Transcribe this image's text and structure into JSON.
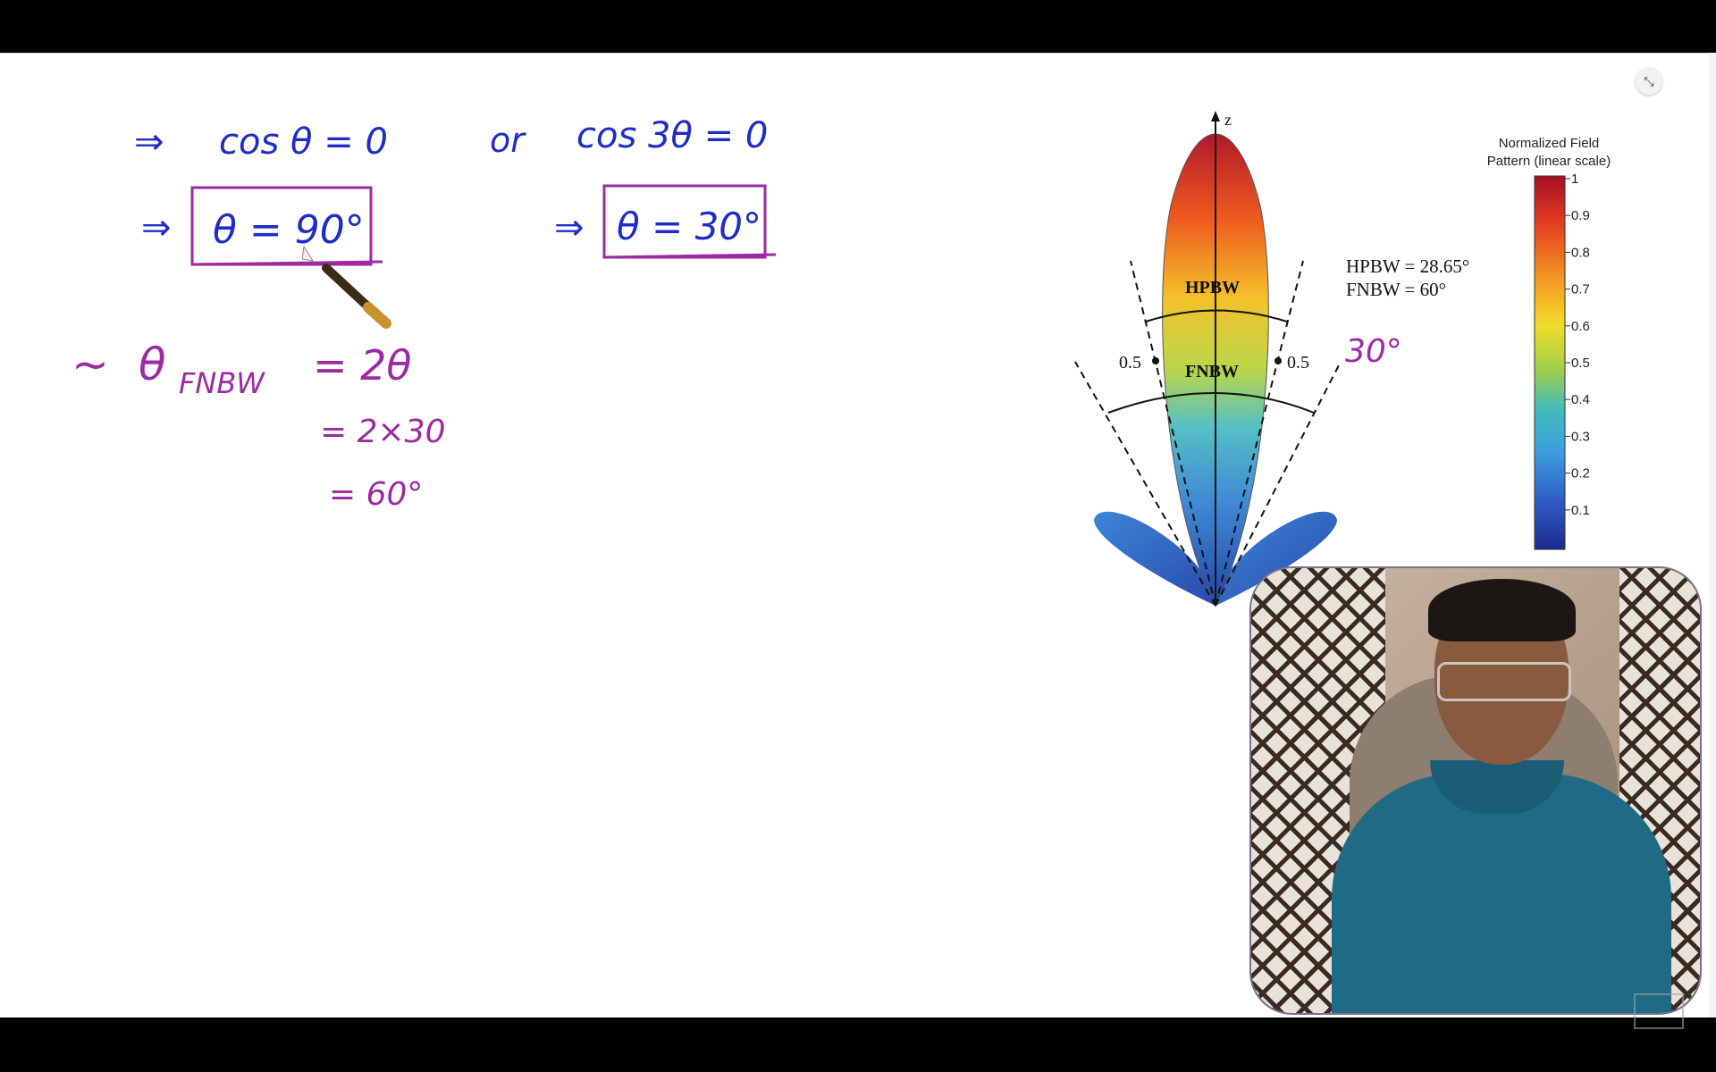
{
  "whiteboard": {
    "line1": {
      "arrow": "⇒",
      "left": "cos θ = 0",
      "connector": "or",
      "right": "cos 3θ = 0"
    },
    "boxed_left": {
      "arrow": "⇒",
      "text": "θ = 90°"
    },
    "boxed_right": {
      "arrow": "⇒",
      "text": "θ = 30°"
    },
    "fnbw_eq": {
      "prefix": "~",
      "theta": "θ",
      "subscript": "FNBW",
      "rhs": "= 2θ"
    },
    "step2": "= 2×30",
    "step3": "= 60°",
    "annotation_angle": "30°"
  },
  "figure": {
    "axis_label": "z",
    "hpbw_label": "HPBW",
    "fnbw_label": "FNBW",
    "half_power_left": "0.5",
    "half_power_right": "0.5",
    "legend_line1": "HPBW = 28.65°",
    "legend_line2": "FNBW = 60°"
  },
  "colorbar": {
    "title_line1": "Normalized Field",
    "title_line2": "Pattern (linear scale)",
    "ticks": [
      "1",
      "0.9",
      "0.8",
      "0.7",
      "0.6",
      "0.5",
      "0.4",
      "0.3",
      "0.2",
      "0.1"
    ],
    "colors": {
      "top": "#b2182b",
      "upper": "#f4a11f",
      "mid": "#e6d92a",
      "lower": "#4ab7d9",
      "bottom": "#1a2a8f"
    }
  },
  "controls": {
    "collapse_icon": "⤡"
  },
  "colors": {
    "ink_blue": "#1f2cc9",
    "ink_purple": "#9b2aa3"
  }
}
